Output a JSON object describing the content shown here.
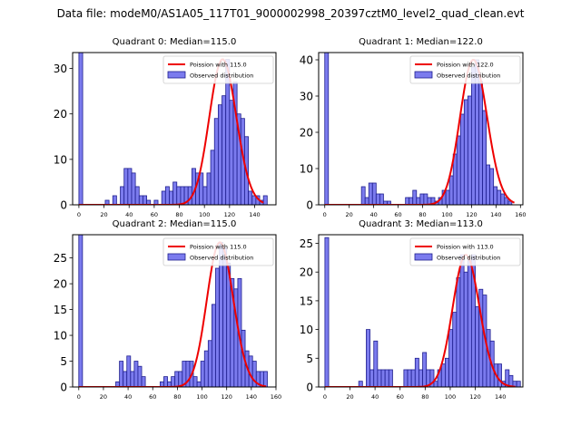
{
  "figure": {
    "suptitle": "Data file: modeM0/AS1A05_117T01_9000002998_20397cztM0_level2_quad_clean.evt"
  },
  "colors": {
    "hist_face": "#7b7bee",
    "hist_edge": "#1f1f8f",
    "poisson_line": "#ee0000",
    "axis": "#000000"
  },
  "chart_data": [
    {
      "type": "bar",
      "title": "Quadrant 0: Median=115.0",
      "xlim": [
        -5,
        157
      ],
      "ylim": [
        0,
        33.5
      ],
      "xticks": [
        0,
        20,
        40,
        60,
        80,
        100,
        120,
        140
      ],
      "yticks": [
        0,
        10,
        20,
        30
      ],
      "bin_width": 3,
      "bins": [
        [
          0,
          34
        ],
        [
          21,
          1
        ],
        [
          27,
          2
        ],
        [
          33,
          4
        ],
        [
          36,
          8
        ],
        [
          39,
          8
        ],
        [
          42,
          7
        ],
        [
          45,
          4
        ],
        [
          48,
          2
        ],
        [
          51,
          2
        ],
        [
          54,
          1
        ],
        [
          60,
          1
        ],
        [
          66,
          3
        ],
        [
          69,
          4
        ],
        [
          72,
          3
        ],
        [
          75,
          5
        ],
        [
          78,
          4
        ],
        [
          81,
          4
        ],
        [
          84,
          4
        ],
        [
          87,
          4
        ],
        [
          90,
          8
        ],
        [
          93,
          7
        ],
        [
          96,
          7
        ],
        [
          99,
          4
        ],
        [
          102,
          7
        ],
        [
          105,
          12
        ],
        [
          108,
          19
        ],
        [
          111,
          22
        ],
        [
          114,
          24
        ],
        [
          117,
          32
        ],
        [
          120,
          23
        ],
        [
          123,
          27
        ],
        [
          126,
          20
        ],
        [
          129,
          19
        ],
        [
          132,
          15
        ],
        [
          135,
          3
        ],
        [
          138,
          2
        ],
        [
          141,
          2
        ],
        [
          144,
          1
        ],
        [
          147,
          2
        ]
      ],
      "poisson_mean": 115,
      "poisson_range": [
        0,
        147
      ],
      "legend": [
        "Poission with 115.0",
        "Observed distribution"
      ]
    },
    {
      "type": "bar",
      "title": "Quadrant 1: Median=122.0",
      "xlim": [
        -5,
        162
      ],
      "ylim": [
        0,
        42
      ],
      "xticks": [
        0,
        20,
        40,
        60,
        80,
        100,
        120,
        140,
        160
      ],
      "yticks": [
        0,
        10,
        20,
        30,
        40
      ],
      "bin_width": 3,
      "bins": [
        [
          0,
          42
        ],
        [
          30,
          5
        ],
        [
          33,
          2
        ],
        [
          36,
          6
        ],
        [
          39,
          6
        ],
        [
          42,
          3
        ],
        [
          45,
          3
        ],
        [
          48,
          1
        ],
        [
          51,
          1
        ],
        [
          66,
          2
        ],
        [
          69,
          2
        ],
        [
          72,
          4
        ],
        [
          75,
          2
        ],
        [
          78,
          3
        ],
        [
          81,
          3
        ],
        [
          84,
          2
        ],
        [
          87,
          2
        ],
        [
          90,
          1
        ],
        [
          93,
          2
        ],
        [
          96,
          4
        ],
        [
          99,
          4
        ],
        [
          102,
          8
        ],
        [
          105,
          14
        ],
        [
          108,
          19
        ],
        [
          111,
          25
        ],
        [
          114,
          29
        ],
        [
          117,
          30
        ],
        [
          120,
          38
        ],
        [
          123,
          40
        ],
        [
          126,
          34
        ],
        [
          129,
          26
        ],
        [
          132,
          11
        ],
        [
          135,
          10
        ],
        [
          138,
          5
        ],
        [
          141,
          4
        ],
        [
          144,
          3
        ],
        [
          147,
          2
        ],
        [
          150,
          1
        ]
      ],
      "poisson_mean": 122,
      "poisson_range": [
        0,
        155
      ],
      "legend": [
        "Poission with 122.0",
        "Observed distribution"
      ]
    },
    {
      "type": "bar",
      "title": "Quadrant 2: Median=115.0",
      "xlim": [
        -5,
        160
      ],
      "ylim": [
        0,
        29.5
      ],
      "xticks": [
        0,
        20,
        40,
        60,
        80,
        100,
        120,
        140,
        160
      ],
      "yticks": [
        0,
        5,
        10,
        15,
        20,
        25
      ],
      "bin_width": 3,
      "bins": [
        [
          0,
          30
        ],
        [
          30,
          1
        ],
        [
          33,
          5
        ],
        [
          36,
          3
        ],
        [
          39,
          6
        ],
        [
          42,
          3
        ],
        [
          45,
          5
        ],
        [
          48,
          4
        ],
        [
          51,
          2
        ],
        [
          66,
          1
        ],
        [
          69,
          2
        ],
        [
          72,
          1
        ],
        [
          75,
          2
        ],
        [
          78,
          3
        ],
        [
          81,
          3
        ],
        [
          84,
          5
        ],
        [
          87,
          5
        ],
        [
          90,
          5
        ],
        [
          93,
          2
        ],
        [
          96,
          1
        ],
        [
          99,
          5
        ],
        [
          102,
          7
        ],
        [
          105,
          9
        ],
        [
          108,
          16
        ],
        [
          111,
          23
        ],
        [
          114,
          28
        ],
        [
          117,
          27
        ],
        [
          120,
          24
        ],
        [
          123,
          21
        ],
        [
          126,
          19
        ],
        [
          129,
          21
        ],
        [
          132,
          11
        ],
        [
          135,
          7
        ],
        [
          138,
          6
        ],
        [
          141,
          5
        ],
        [
          144,
          3
        ],
        [
          147,
          3
        ],
        [
          150,
          3
        ]
      ],
      "poisson_mean": 115,
      "poisson_range": [
        0,
        152
      ],
      "legend": [
        "Poission with 115.0",
        "Observed distribution"
      ]
    },
    {
      "type": "bar",
      "title": "Quadrant 3: Median=113.0",
      "xlim": [
        -5,
        158
      ],
      "ylim": [
        0,
        26.5
      ],
      "xticks": [
        0,
        20,
        40,
        60,
        80,
        100,
        120,
        140
      ],
      "yticks": [
        0,
        5,
        10,
        15,
        20,
        25
      ],
      "bin_width": 3,
      "bins": [
        [
          0,
          26
        ],
        [
          27,
          1
        ],
        [
          33,
          10
        ],
        [
          36,
          3
        ],
        [
          39,
          8
        ],
        [
          42,
          3
        ],
        [
          45,
          3
        ],
        [
          48,
          3
        ],
        [
          51,
          3
        ],
        [
          63,
          3
        ],
        [
          66,
          3
        ],
        [
          69,
          3
        ],
        [
          72,
          5
        ],
        [
          75,
          3
        ],
        [
          78,
          6
        ],
        [
          81,
          3
        ],
        [
          84,
          3
        ],
        [
          87,
          1
        ],
        [
          90,
          3
        ],
        [
          93,
          4
        ],
        [
          96,
          5
        ],
        [
          99,
          10
        ],
        [
          102,
          13
        ],
        [
          105,
          19
        ],
        [
          108,
          23
        ],
        [
          111,
          20
        ],
        [
          114,
          22
        ],
        [
          117,
          23
        ],
        [
          120,
          14
        ],
        [
          123,
          17
        ],
        [
          126,
          16
        ],
        [
          129,
          10
        ],
        [
          132,
          8
        ],
        [
          135,
          4
        ],
        [
          138,
          4
        ],
        [
          141,
          1
        ],
        [
          144,
          3
        ],
        [
          147,
          2
        ],
        [
          150,
          1
        ],
        [
          153,
          1
        ]
      ],
      "poisson_mean": 113,
      "poisson_range": [
        0,
        152
      ],
      "legend": [
        "Poission with 113.0",
        "Observed distribution"
      ]
    }
  ]
}
